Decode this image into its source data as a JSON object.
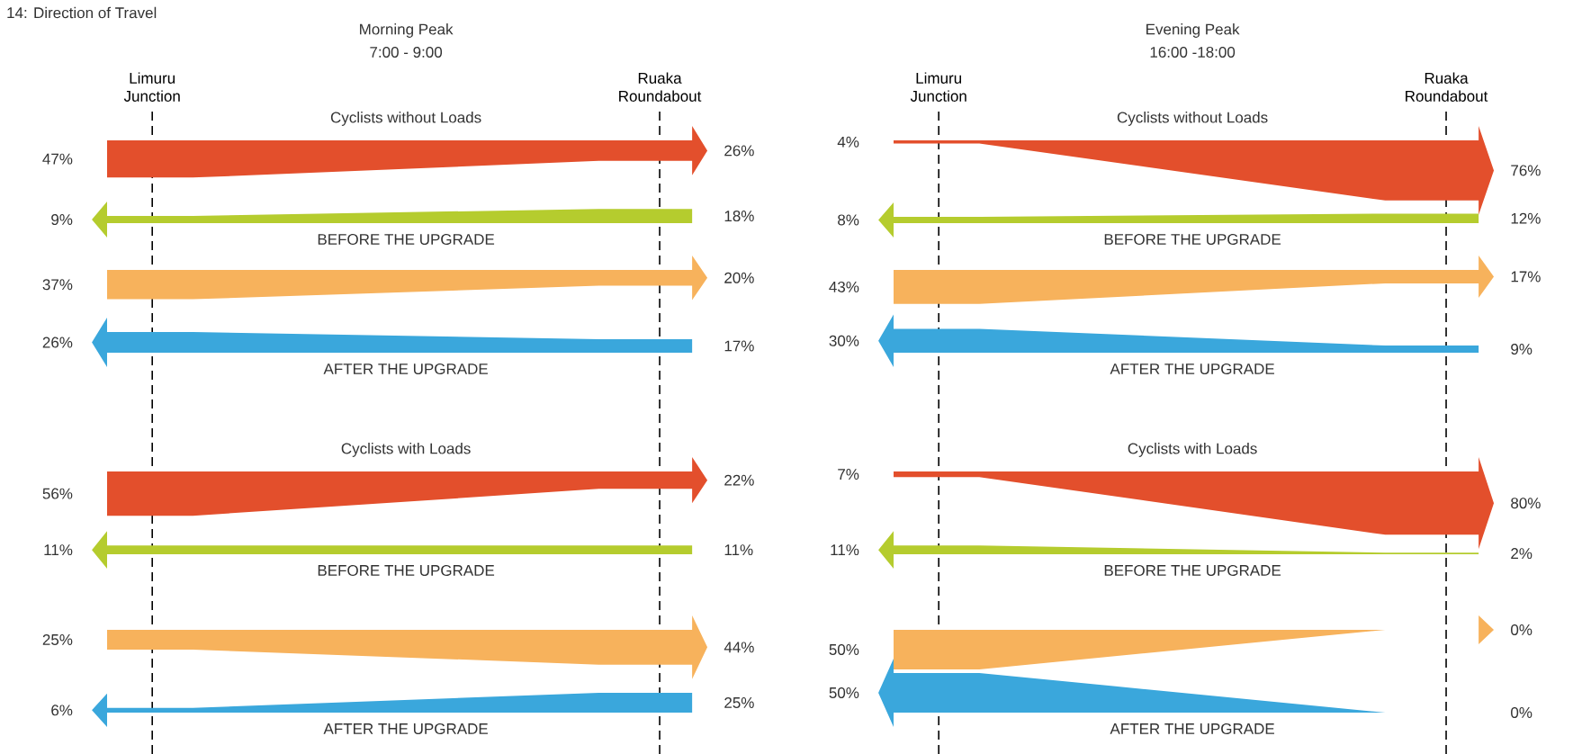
{
  "chart_data": [
    {
      "type": "other",
      "title": "Morning Peak",
      "subtitle": "7:00 - 9:00",
      "categories": [
        "Limuru Junction",
        "Ruaka Roundabout"
      ],
      "annotations": [
        "Cyclists without Loads",
        "BEFORE THE UPGRADE",
        "AFTER THE UPGRADE",
        "Cyclists with Loads",
        "BEFORE THE UPGRADE",
        "AFTER THE UPGRADE",
        "14: Direction of Travel"
      ],
      "series": [
        {
          "color": "#e34f2c",
          "values": [
            47,
            26
          ],
          "value_labels": [
            "47%",
            "26%"
          ]
        },
        {
          "color": "#b5cc2e",
          "values": [
            9,
            18
          ],
          "value_labels": [
            "9%",
            "18%"
          ]
        },
        {
          "color": "#f7b25c",
          "values": [
            37,
            20
          ],
          "value_labels": [
            "37%",
            "20%"
          ]
        },
        {
          "color": "#3aa7dc",
          "values": [
            26,
            17
          ],
          "value_labels": [
            "26%",
            "17%"
          ]
        },
        {
          "color": "#e34f2c",
          "values": [
            56,
            22
          ],
          "value_labels": [
            "56%",
            "22%"
          ]
        },
        {
          "color": "#b5cc2e",
          "values": [
            11,
            11
          ],
          "value_labels": [
            "11%",
            "11%"
          ]
        },
        {
          "color": "#f7b25c",
          "values": [
            25,
            44
          ],
          "value_labels": [
            "25%",
            "44%"
          ]
        },
        {
          "color": "#3aa7dc",
          "values": [
            6,
            25
          ],
          "value_labels": [
            "6%",
            "25%"
          ]
        }
      ]
    },
    {
      "type": "other",
      "title": "Evening Peak",
      "subtitle": "16:00 -18:00",
      "categories": [
        "Limuru Junction",
        "Ruaka Roundabout"
      ],
      "annotations": [
        "Cyclists without Loads",
        "BEFORE THE UPGRADE",
        "AFTER THE UPGRADE",
        "Cyclists with Loads",
        "BEFORE THE UPGRADE",
        "AFTER THE UPGRADE"
      ],
      "series": [
        {
          "color": "#e34f2c",
          "values": [
            4,
            76
          ],
          "value_labels": [
            "4%",
            "76%"
          ]
        },
        {
          "color": "#b5cc2e",
          "values": [
            8,
            12
          ],
          "value_labels": [
            "8%",
            "12%"
          ]
        },
        {
          "color": "#f7b25c",
          "values": [
            43,
            17
          ],
          "value_labels": [
            "43%",
            "17%"
          ]
        },
        {
          "color": "#3aa7dc",
          "values": [
            30,
            9
          ],
          "value_labels": [
            "30%",
            "9%"
          ]
        },
        {
          "color": "#e34f2c",
          "values": [
            7,
            80
          ],
          "value_labels": [
            "7%",
            "80%"
          ]
        },
        {
          "color": "#b5cc2e",
          "values": [
            11,
            2
          ],
          "value_labels": [
            "11%",
            "2%"
          ]
        },
        {
          "color": "#f7b25c",
          "values": [
            50,
            0
          ],
          "value_labels": [
            "50%",
            "0%"
          ]
        },
        {
          "color": "#3aa7dc",
          "values": [
            50,
            0
          ],
          "value_labels": [
            "50%",
            "0%"
          ]
        }
      ]
    }
  ]
}
